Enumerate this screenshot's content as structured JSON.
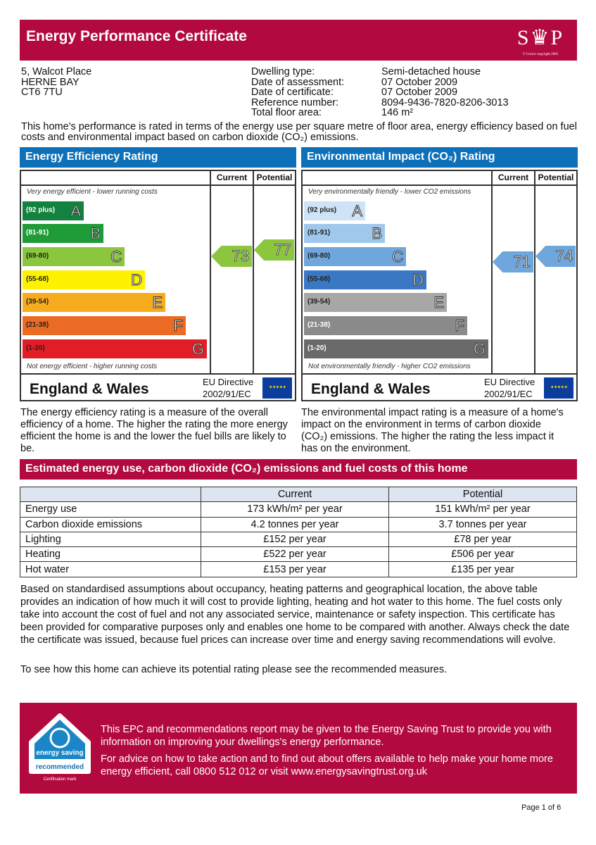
{
  "header": {
    "title": "Energy Performance Certificate",
    "logo_text": "SAP",
    "logo_copyright": "© Crown copyright 2005"
  },
  "address": [
    "5, Walcot Place",
    "HERNE BAY",
    "CT6 7TU"
  ],
  "details": [
    {
      "label": "Dwelling type:",
      "value": "Semi-detached house"
    },
    {
      "label": "Date of assessment:",
      "value": "07 October 2009"
    },
    {
      "label": "Date of certificate:",
      "value": "07 October 2009"
    },
    {
      "label": "Reference number:",
      "value": "8094-9436-7820-8206-3013"
    },
    {
      "label": "Total floor area:",
      "value": "146 m²"
    }
  ],
  "intro": "This home's performance is rated in terms of the energy use per square metre of floor area, energy efficiency based on fuel costs and environmental impact based on carbon dioxide (CO₂) emissions.",
  "charts": [
    {
      "title": "Energy Efficiency Rating",
      "col_current": "Current",
      "col_potential": "Potential",
      "top_note": "Very energy efficient - lower running costs",
      "bottom_note": "Not energy efficient - higher running costs",
      "bands": [
        {
          "range": "(92 plus)",
          "letter": "A",
          "color": "#13823f",
          "text": "#fff"
        },
        {
          "range": "(81-91)",
          "letter": "B",
          "color": "#1f9b38",
          "text": "#fff"
        },
        {
          "range": "(69-80)",
          "letter": "C",
          "color": "#8cc63f",
          "text": "#222"
        },
        {
          "range": "(55-68)",
          "letter": "D",
          "color": "#fff200",
          "text": "#222"
        },
        {
          "range": "(39-54)",
          "letter": "E",
          "color": "#f7ac1f",
          "text": "#222"
        },
        {
          "range": "(21-38)",
          "letter": "F",
          "color": "#ec6b24",
          "text": "#222"
        },
        {
          "range": "(1-20)",
          "letter": "G",
          "color": "#e31d25",
          "text": "#222"
        }
      ],
      "current": 73,
      "potential": 77,
      "current_color": "#8cc63f",
      "potential_color": "#8cc63f",
      "region": "England & Wales",
      "directive_line1": "EU Directive",
      "directive_line2": "2002/91/EC",
      "description": "The energy efficiency rating is a measure of the overall efficiency of a home. The higher the rating the more energy efficient the home is and the lower the fuel bills are likely to be."
    },
    {
      "title": "Environmental Impact (CO₂) Rating",
      "col_current": "Current",
      "col_potential": "Potential",
      "top_note": "Very environmentally friendly - lower CO2 emissions",
      "bottom_note": "Not environmentally friendly - higher CO2 emissions",
      "bands": [
        {
          "range": "(92 plus)",
          "letter": "A",
          "color": "#cfe3f6",
          "text": "#222"
        },
        {
          "range": "(81-91)",
          "letter": "B",
          "color": "#9fc8ec",
          "text": "#222"
        },
        {
          "range": "(69-80)",
          "letter": "C",
          "color": "#6fa6dc",
          "text": "#222"
        },
        {
          "range": "(55-68)",
          "letter": "D",
          "color": "#3b78c4",
          "text": "#222"
        },
        {
          "range": "(39-54)",
          "letter": "E",
          "color": "#a7a7a7",
          "text": "#222"
        },
        {
          "range": "(21-38)",
          "letter": "F",
          "color": "#8a8a8a",
          "text": "#fff"
        },
        {
          "range": "(1-20)",
          "letter": "G",
          "color": "#6a6a6a",
          "text": "#fff"
        }
      ],
      "current": 71,
      "potential": 74,
      "current_color": "#6fa6dc",
      "potential_color": "#6fa6dc",
      "region": "England & Wales",
      "directive_line1": "EU Directive",
      "directive_line2": "2002/91/EC",
      "description": "The environmental impact rating is a measure of a home's impact on the environment in terms of carbon dioxide (CO₂) emissions. The higher the rating the less impact it has on the environment."
    }
  ],
  "estimates": {
    "title": "Estimated energy use, carbon dioxide (CO₂) emissions and fuel costs of this home",
    "headers": [
      "",
      "Current",
      "Potential"
    ],
    "rows": [
      [
        "Energy use",
        "173 kWh/m² per year",
        "151 kWh/m² per year"
      ],
      [
        "Carbon dioxide emissions",
        "4.2 tonnes per year",
        "3.7 tonnes per year"
      ],
      [
        "Lighting",
        "£152 per year",
        "£78 per year"
      ],
      [
        "Heating",
        "£522 per year",
        "£506 per year"
      ],
      [
        "Hot water",
        "£153 per year",
        "£135 per year"
      ]
    ]
  },
  "body_text": "Based on standardised assumptions about occupancy, heating patterns and geographical location, the above table provides an indication of how much it will cost to provide lighting, heating and hot water to this home. The fuel costs only take into account the cost of fuel and not any associated service, maintenance or safety inspection. This certificate has been provided for comparative purposes only and enables one home to be compared with another. Always check the date the certificate was issued, because fuel prices can increase over time and energy saving recommendations will evolve.",
  "see_text": "To see how this home can achieve its potential rating please see the recommended measures.",
  "ad": {
    "logo_text1": "energy saving",
    "logo_text2": "recommended",
    "logo_caption": "Certification mark",
    "line1": "This EPC and recommendations report may be given to the Energy Saving Trust to provide you with information on improving your dwellings's energy performance.",
    "line2": "For advice on how to take action and to find out about offers available to help make your home more energy efficient, call 0800 512 012 or visit www.energysavingtrust.org.uk"
  },
  "page": "Page 1 of  6"
}
